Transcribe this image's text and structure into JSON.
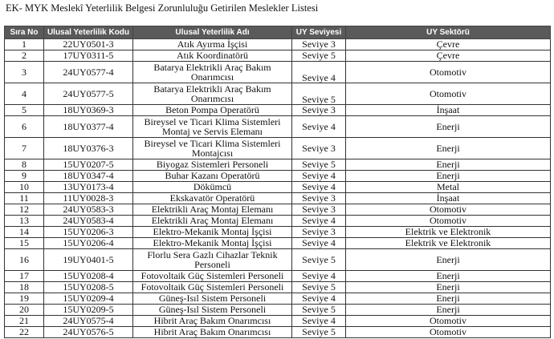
{
  "title": "EK- MYK Meslekî Yeterlilik Belgesi Zorunluluğu Getirilen Meslekler Listesi",
  "table": {
    "headers": [
      "Sıra No",
      "Ulusal Yeterlilik Kodu",
      "Ulusal Yeterlilik Adı",
      "UY Seviyesi",
      "UY Sektörü"
    ],
    "rows": [
      {
        "no": "1",
        "code": "22UY0501-3",
        "name": "Atık Ayırma İşçisi",
        "level": "Seviye 3",
        "sector": "Çevre"
      },
      {
        "no": "2",
        "code": "17UY0311-5",
        "name": "Atık Koordinatörü",
        "level": "Seviye 5",
        "sector": "Çevre"
      },
      {
        "no": "3",
        "code": "24UY0577-4",
        "name": "Batarya Elektrikli Araç Bakım Onarımcısı",
        "level": "Seviye 4",
        "sector": "Otomotiv"
      },
      {
        "no": "4",
        "code": "24UY0577-5",
        "name": "Batarya Elektrikli Araç Bakım Onarımcısı",
        "level": "Seviye 5",
        "sector": "Otomotiv"
      },
      {
        "no": "5",
        "code": "18UY0369-3",
        "name": "Beton Pompa Operatörü",
        "level": "Seviye 3",
        "sector": "İnşaat"
      },
      {
        "no": "6",
        "code": "18UY0377-4",
        "name": "Bireysel ve Ticari Klima Sistemleri Montaj ve Servis Elemanı",
        "level": "Seviye 4",
        "sector": "Enerji"
      },
      {
        "no": "7",
        "code": "18UY0376-3",
        "name": "Bireysel ve Ticari Klima Sistemleri Montajcısı",
        "level": "Seviye 3",
        "sector": "Enerji"
      },
      {
        "no": "8",
        "code": "15UY0207-5",
        "name": "Biyogaz Sistemleri Personeli",
        "level": "Seviye 5",
        "sector": "Enerji"
      },
      {
        "no": "9",
        "code": "18UY0347-4",
        "name": "Buhar Kazanı Operatörü",
        "level": "Seviye 4",
        "sector": "Enerji"
      },
      {
        "no": "10",
        "code": "13UY0173-4",
        "name": "Dökümcü",
        "level": "Seviye 4",
        "sector": "Metal"
      },
      {
        "no": "11",
        "code": "11UY0028-3",
        "name": "Ekskavatör Operatörü",
        "level": "Seviye 3",
        "sector": "İnşaat"
      },
      {
        "no": "12",
        "code": "24UY0583-3",
        "name": "Elektrikli Araç Montaj Elemanı",
        "level": "Seviye 3",
        "sector": "Otomotiv"
      },
      {
        "no": "13",
        "code": "24UY0583-4",
        "name": "Elektrikli Araç Montaj Elemanı",
        "level": "Seviye 4",
        "sector": "Otomotiv"
      },
      {
        "no": "14",
        "code": "15UY0206-3",
        "name": "Elektro-Mekanik Montaj İşçisi",
        "level": "Seviye 3",
        "sector": "Elektrik ve Elektronik"
      },
      {
        "no": "15",
        "code": "15UY0206-4",
        "name": "Elektro-Mekanik Montaj İşçisi",
        "level": "Seviye 4",
        "sector": "Elektrik ve Elektronik"
      },
      {
        "no": "16",
        "code": "19UY0401-5",
        "name": "Florlu Sera Gazlı Cihazlar Teknik Personeli",
        "level": "Seviye 5",
        "sector": "Enerji"
      },
      {
        "no": "17",
        "code": "15UY0208-4",
        "name": "Fotovoltaik Güç Sistemleri Personeli",
        "level": "Seviye 4",
        "sector": "Enerji"
      },
      {
        "no": "18",
        "code": "15UY0208-5",
        "name": "Fotovoltaik Güç Sistemleri Personeli",
        "level": "Seviye 5",
        "sector": "Enerji"
      },
      {
        "no": "19",
        "code": "15UY0209-4",
        "name": "Güneş-Isıl Sistem Personeli",
        "level": "Seviye 4",
        "sector": "Enerji"
      },
      {
        "no": "20",
        "code": "15UY0209-5",
        "name": "Güneş-Isıl Sistem Personeli",
        "level": "Seviye 5",
        "sector": "Enerji"
      },
      {
        "no": "21",
        "code": "24UY0575-4",
        "name": "Hibrit Araç Bakım Onarımcısı",
        "level": "Seviye 4",
        "sector": "Otomotiv"
      },
      {
        "no": "22",
        "code": "24UY0576-5",
        "name": "Hibrit Araç Bakım Onarımcısı",
        "level": "Seviye 5",
        "sector": "Otomotiv"
      }
    ]
  }
}
